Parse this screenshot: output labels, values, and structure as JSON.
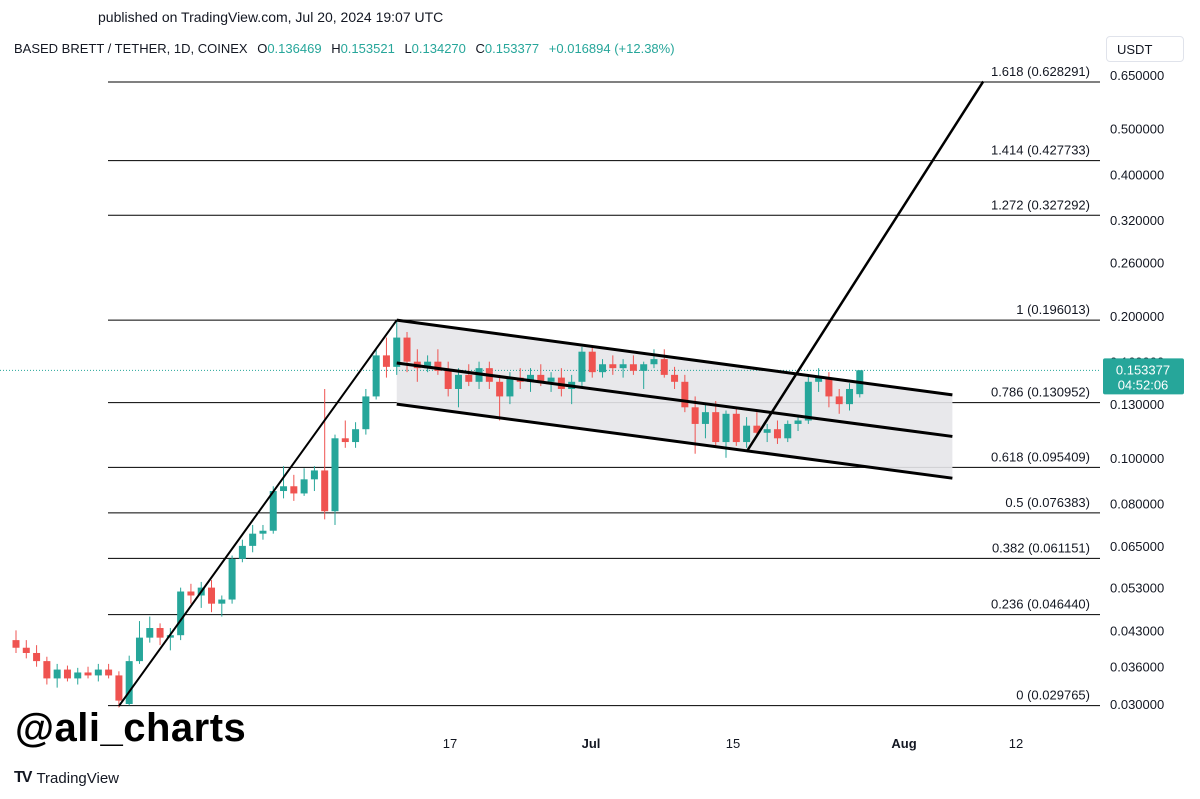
{
  "published": "published on TradingView.com, Jul 20, 2024 19:07 UTC",
  "header": {
    "symbol": "BASED BRETT / TETHER, 1D, COINEX",
    "open_label": "O",
    "open": "0.136469",
    "high_label": "H",
    "high": "0.153521",
    "low_label": "L",
    "low": "0.134270",
    "close_label": "C",
    "close": "0.153377",
    "change": "+0.016894 (+12.38%)"
  },
  "currency": "USDT",
  "watermark": "@ali_charts",
  "brand": {
    "icon": "TV",
    "name": "TradingView"
  },
  "colors": {
    "up": "#26a69a",
    "down": "#ef5350",
    "channel_fill": "#e6e6e9",
    "price_label": "#26a69a"
  },
  "chart_data": {
    "type": "candlestick",
    "y_scale": "log",
    "y_ticks": [
      "0.650000",
      "0.500000",
      "0.400000",
      "0.320000",
      "0.260000",
      "0.200000",
      "0.160000",
      "0.130000",
      "0.100000",
      "0.080000",
      "0.065000",
      "0.053000",
      "0.043000",
      "0.036000",
      "0.030000"
    ],
    "x_ticks": [
      "17",
      "Jul",
      "15",
      "Aug",
      "12"
    ],
    "last_price": "0.153377",
    "countdown": "04:52:06",
    "fib_levels": [
      {
        "ratio": "1.618",
        "value": 0.628291,
        "label": "1.618 (0.628291)"
      },
      {
        "ratio": "1.414",
        "value": 0.427733,
        "label": "1.414 (0.427733)"
      },
      {
        "ratio": "1.272",
        "value": 0.327292,
        "label": "1.272 (0.327292)"
      },
      {
        "ratio": "1",
        "value": 0.196013,
        "label": "1 (0.196013)"
      },
      {
        "ratio": "0.786",
        "value": 0.130952,
        "label": "0.786 (0.130952)"
      },
      {
        "ratio": "0.618",
        "value": 0.095409,
        "label": "0.618 (0.095409)"
      },
      {
        "ratio": "0.5",
        "value": 0.076383,
        "label": "0.5 (0.076383)"
      },
      {
        "ratio": "0.382",
        "value": 0.061151,
        "label": "0.382 (0.061151)"
      },
      {
        "ratio": "0.236",
        "value": 0.04644,
        "label": "0.236 (0.046440)"
      },
      {
        "ratio": "0",
        "value": 0.029765,
        "label": "0 (0.029765)"
      }
    ],
    "candles": [
      {
        "o": 0.041,
        "h": 0.043,
        "l": 0.0385,
        "c": 0.0395
      },
      {
        "o": 0.0395,
        "h": 0.041,
        "l": 0.0375,
        "c": 0.0385
      },
      {
        "o": 0.0385,
        "h": 0.04,
        "l": 0.036,
        "c": 0.037
      },
      {
        "o": 0.037,
        "h": 0.0378,
        "l": 0.033,
        "c": 0.034
      },
      {
        "o": 0.034,
        "h": 0.0365,
        "l": 0.0325,
        "c": 0.0355
      },
      {
        "o": 0.0355,
        "h": 0.0362,
        "l": 0.0335,
        "c": 0.034
      },
      {
        "o": 0.034,
        "h": 0.0358,
        "l": 0.033,
        "c": 0.035
      },
      {
        "o": 0.035,
        "h": 0.036,
        "l": 0.034,
        "c": 0.0345
      },
      {
        "o": 0.0345,
        "h": 0.0365,
        "l": 0.0335,
        "c": 0.0355
      },
      {
        "o": 0.0355,
        "h": 0.0365,
        "l": 0.034,
        "c": 0.0345
      },
      {
        "o": 0.0345,
        "h": 0.0352,
        "l": 0.0295,
        "c": 0.0305
      },
      {
        "o": 0.03,
        "h": 0.038,
        "l": 0.0298,
        "c": 0.037
      },
      {
        "o": 0.037,
        "h": 0.045,
        "l": 0.0365,
        "c": 0.0415
      },
      {
        "o": 0.0415,
        "h": 0.046,
        "l": 0.0405,
        "c": 0.0435
      },
      {
        "o": 0.0435,
        "h": 0.0445,
        "l": 0.04,
        "c": 0.0415
      },
      {
        "o": 0.0415,
        "h": 0.0435,
        "l": 0.039,
        "c": 0.042
      },
      {
        "o": 0.042,
        "h": 0.053,
        "l": 0.041,
        "c": 0.052
      },
      {
        "o": 0.052,
        "h": 0.054,
        "l": 0.049,
        "c": 0.051
      },
      {
        "o": 0.051,
        "h": 0.0545,
        "l": 0.048,
        "c": 0.053
      },
      {
        "o": 0.053,
        "h": 0.055,
        "l": 0.047,
        "c": 0.049
      },
      {
        "o": 0.049,
        "h": 0.051,
        "l": 0.046,
        "c": 0.05
      },
      {
        "o": 0.05,
        "h": 0.062,
        "l": 0.049,
        "c": 0.061
      },
      {
        "o": 0.061,
        "h": 0.067,
        "l": 0.06,
        "c": 0.065
      },
      {
        "o": 0.065,
        "h": 0.072,
        "l": 0.063,
        "c": 0.069
      },
      {
        "o": 0.069,
        "h": 0.072,
        "l": 0.067,
        "c": 0.07
      },
      {
        "o": 0.07,
        "h": 0.087,
        "l": 0.069,
        "c": 0.085
      },
      {
        "o": 0.085,
        "h": 0.096,
        "l": 0.082,
        "c": 0.087
      },
      {
        "o": 0.087,
        "h": 0.092,
        "l": 0.081,
        "c": 0.084
      },
      {
        "o": 0.084,
        "h": 0.095,
        "l": 0.083,
        "c": 0.09
      },
      {
        "o": 0.09,
        "h": 0.096,
        "l": 0.085,
        "c": 0.094
      },
      {
        "o": 0.094,
        "h": 0.14,
        "l": 0.074,
        "c": 0.077
      },
      {
        "o": 0.077,
        "h": 0.112,
        "l": 0.072,
        "c": 0.11
      },
      {
        "o": 0.11,
        "h": 0.12,
        "l": 0.105,
        "c": 0.108
      },
      {
        "o": 0.108,
        "h": 0.119,
        "l": 0.105,
        "c": 0.115
      },
      {
        "o": 0.115,
        "h": 0.14,
        "l": 0.112,
        "c": 0.135
      },
      {
        "o": 0.135,
        "h": 0.17,
        "l": 0.133,
        "c": 0.165
      },
      {
        "o": 0.165,
        "h": 0.18,
        "l": 0.148,
        "c": 0.156
      },
      {
        "o": 0.156,
        "h": 0.196,
        "l": 0.15,
        "c": 0.18
      },
      {
        "o": 0.18,
        "h": 0.185,
        "l": 0.152,
        "c": 0.16
      },
      {
        "o": 0.16,
        "h": 0.17,
        "l": 0.145,
        "c": 0.155
      },
      {
        "o": 0.155,
        "h": 0.165,
        "l": 0.152,
        "c": 0.16
      },
      {
        "o": 0.16,
        "h": 0.17,
        "l": 0.15,
        "c": 0.153
      },
      {
        "o": 0.153,
        "h": 0.16,
        "l": 0.135,
        "c": 0.14
      },
      {
        "o": 0.14,
        "h": 0.155,
        "l": 0.128,
        "c": 0.15
      },
      {
        "o": 0.15,
        "h": 0.158,
        "l": 0.142,
        "c": 0.145
      },
      {
        "o": 0.145,
        "h": 0.16,
        "l": 0.14,
        "c": 0.155
      },
      {
        "o": 0.155,
        "h": 0.16,
        "l": 0.14,
        "c": 0.145
      },
      {
        "o": 0.145,
        "h": 0.15,
        "l": 0.12,
        "c": 0.135
      },
      {
        "o": 0.135,
        "h": 0.152,
        "l": 0.13,
        "c": 0.148
      },
      {
        "o": 0.148,
        "h": 0.155,
        "l": 0.14,
        "c": 0.145
      },
      {
        "o": 0.145,
        "h": 0.155,
        "l": 0.138,
        "c": 0.15
      },
      {
        "o": 0.15,
        "h": 0.158,
        "l": 0.142,
        "c": 0.145
      },
      {
        "o": 0.145,
        "h": 0.152,
        "l": 0.138,
        "c": 0.148
      },
      {
        "o": 0.148,
        "h": 0.155,
        "l": 0.135,
        "c": 0.14
      },
      {
        "o": 0.14,
        "h": 0.15,
        "l": 0.13,
        "c": 0.145
      },
      {
        "o": 0.145,
        "h": 0.172,
        "l": 0.142,
        "c": 0.168
      },
      {
        "o": 0.168,
        "h": 0.172,
        "l": 0.148,
        "c": 0.152
      },
      {
        "o": 0.152,
        "h": 0.162,
        "l": 0.148,
        "c": 0.158
      },
      {
        "o": 0.158,
        "h": 0.165,
        "l": 0.15,
        "c": 0.155
      },
      {
        "o": 0.155,
        "h": 0.162,
        "l": 0.148,
        "c": 0.158
      },
      {
        "o": 0.158,
        "h": 0.165,
        "l": 0.15,
        "c": 0.153
      },
      {
        "o": 0.153,
        "h": 0.16,
        "l": 0.14,
        "c": 0.158
      },
      {
        "o": 0.158,
        "h": 0.17,
        "l": 0.155,
        "c": 0.162
      },
      {
        "o": 0.162,
        "h": 0.17,
        "l": 0.148,
        "c": 0.15
      },
      {
        "o": 0.15,
        "h": 0.156,
        "l": 0.14,
        "c": 0.145
      },
      {
        "o": 0.145,
        "h": 0.15,
        "l": 0.125,
        "c": 0.128
      },
      {
        "o": 0.128,
        "h": 0.135,
        "l": 0.102,
        "c": 0.118
      },
      {
        "o": 0.118,
        "h": 0.13,
        "l": 0.11,
        "c": 0.125
      },
      {
        "o": 0.125,
        "h": 0.132,
        "l": 0.106,
        "c": 0.108
      },
      {
        "o": 0.108,
        "h": 0.126,
        "l": 0.1,
        "c": 0.124
      },
      {
        "o": 0.124,
        "h": 0.128,
        "l": 0.106,
        "c": 0.108
      },
      {
        "o": 0.108,
        "h": 0.122,
        "l": 0.105,
        "c": 0.117
      },
      {
        "o": 0.117,
        "h": 0.125,
        "l": 0.112,
        "c": 0.113
      },
      {
        "o": 0.113,
        "h": 0.118,
        "l": 0.108,
        "c": 0.115
      },
      {
        "o": 0.115,
        "h": 0.12,
        "l": 0.107,
        "c": 0.11
      },
      {
        "o": 0.11,
        "h": 0.12,
        "l": 0.108,
        "c": 0.118
      },
      {
        "o": 0.118,
        "h": 0.122,
        "l": 0.114,
        "c": 0.12
      },
      {
        "o": 0.12,
        "h": 0.15,
        "l": 0.118,
        "c": 0.145
      },
      {
        "o": 0.145,
        "h": 0.155,
        "l": 0.138,
        "c": 0.148
      },
      {
        "o": 0.148,
        "h": 0.152,
        "l": 0.128,
        "c": 0.135
      },
      {
        "o": 0.135,
        "h": 0.14,
        "l": 0.124,
        "c": 0.13
      },
      {
        "o": 0.13,
        "h": 0.144,
        "l": 0.126,
        "c": 0.14
      },
      {
        "o": 0.1365,
        "h": 0.1535,
        "l": 0.1343,
        "c": 0.1534
      }
    ],
    "drawings": {
      "impulse_leg": {
        "start": {
          "bar": 10,
          "price": 0.0297
        },
        "end": {
          "bar": 37,
          "price": 0.196
        }
      },
      "channel_upper": {
        "start": {
          "bar": 37,
          "price": 0.196
        },
        "end": {
          "bar": 91,
          "price": 0.136
        }
      },
      "channel_middle": {
        "start": {
          "bar": 37,
          "price": 0.159
        },
        "end": {
          "bar": 91,
          "price": 0.111
        }
      },
      "channel_lower": {
        "start": {
          "bar": 37,
          "price": 0.13
        },
        "end": {
          "bar": 91,
          "price": 0.0905
        }
      },
      "projection": {
        "start": {
          "bar": 71,
          "price": 0.103
        },
        "end": {
          "bar": 94,
          "price": 0.63
        }
      }
    }
  }
}
